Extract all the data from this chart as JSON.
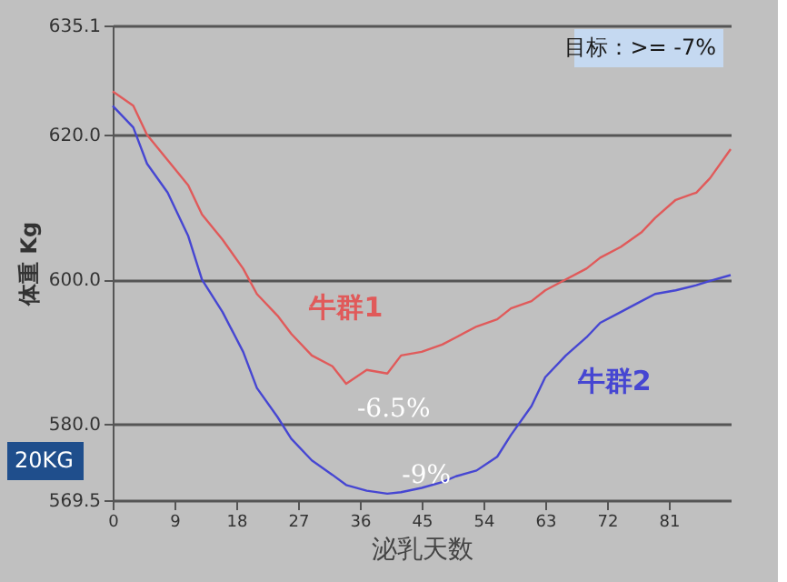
{
  "chart_data": {
    "type": "line",
    "x": [
      0,
      3,
      5,
      8,
      11,
      13,
      16,
      19,
      21,
      24,
      26,
      29,
      32,
      34,
      37,
      40,
      42,
      45,
      48,
      50,
      53,
      56,
      58,
      61,
      63,
      66,
      69,
      71,
      74,
      77,
      79,
      82,
      85,
      87,
      90
    ],
    "series": [
      {
        "name": "牛群1",
        "color": "#e05a5a",
        "values": [
          626,
          624,
          620,
          616.5,
          613,
          609,
          605.5,
          601.5,
          598,
          595,
          592.5,
          589.5,
          588,
          585.6,
          587.5,
          587,
          589.5,
          590,
          591,
          592,
          593.5,
          594.5,
          596,
          597,
          598.5,
          600,
          601.5,
          603,
          604.5,
          606.5,
          608.5,
          611,
          612,
          614,
          618
        ]
      },
      {
        "name": "牛群2",
        "color": "#4646d2",
        "values": [
          624,
          621,
          616,
          612,
          606,
          600,
          595.5,
          590,
          585,
          581,
          578,
          575,
          573,
          571.6,
          570.8,
          570.4,
          570.6,
          571.2,
          572,
          572.8,
          573.6,
          575.5,
          578.5,
          582.5,
          586.5,
          589.5,
          592,
          594,
          595.5,
          597,
          598,
          598.5,
          599.2,
          599.8,
          600.6
        ]
      }
    ],
    "xlabel": "泌乳天数",
    "ylabel": "体重 Kg",
    "xlim": [
      0,
      90
    ],
    "xticks": [
      0,
      9,
      18,
      27,
      36,
      45,
      54,
      63,
      72,
      81
    ],
    "ylim": [
      569.5,
      635.1
    ],
    "yticks": [
      {
        "value": 569.5,
        "label": "569.5"
      },
      {
        "value": 580,
        "label": "580.0"
      },
      {
        "value": 600,
        "label": "600.0"
      },
      {
        "value": 620,
        "label": "620.0"
      },
      {
        "value": 635.1,
        "label": "635.1"
      }
    ],
    "grid": "y",
    "marker": "none",
    "line_style": "solid",
    "annotations": [
      "目标：>= -7%",
      "20KG",
      {
        "text": "-6.5%",
        "x": 34,
        "y": 585.6
      },
      {
        "text": "-9%",
        "x": 40,
        "y": 570.4
      }
    ]
  }
}
